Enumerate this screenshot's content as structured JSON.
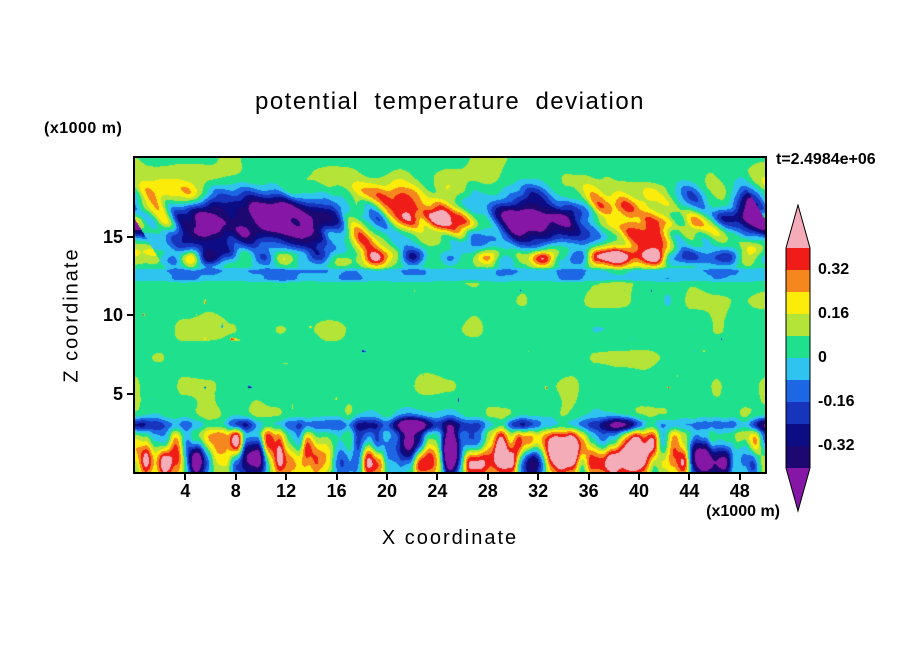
{
  "figure": {
    "background_color": "#ffffff",
    "text_color": "#000000",
    "frame_color": "#000000"
  },
  "chart_data": {
    "type": "heatmap",
    "title": "potential temperature deviation",
    "xlabel": "X coordinate",
    "ylabel": "Z coordinate",
    "x_unit_label": "(x1000 m)",
    "y_unit_label": "(x1000 m)",
    "time_annotation": "t=2.4984e+06",
    "xlim": [
      0,
      50
    ],
    "ylim": [
      0,
      20
    ],
    "x_ticks": [
      4,
      8,
      12,
      16,
      20,
      24,
      28,
      32,
      36,
      40,
      44,
      48
    ],
    "y_ticks": [
      5,
      10,
      15
    ],
    "grid": false,
    "legend": null,
    "colorbar": {
      "position": "right",
      "tick_labels": [
        "0.32",
        "0.16",
        "0",
        "-0.16",
        "-0.32"
      ],
      "levels": [
        0.4,
        0.32,
        0.24,
        0.16,
        0.08,
        0,
        -0.08,
        -0.16,
        -0.24,
        -0.32,
        -0.4
      ],
      "over_color": "#f4acb8",
      "segment_colors": [
        "#ef1c17",
        "#f6871e",
        "#fcec0a",
        "#b4e437",
        "#1fe18d",
        "#2fc4f0",
        "#1d66e4",
        "#1634bc",
        "#0c0c84",
        "#1d0770"
      ],
      "under_color": "#8616a6"
    },
    "field": {
      "note": "contour field reconstructed procedurally to approximate visible structure",
      "background": 0.05,
      "mottle": {
        "amp": 0.055,
        "nx": 26,
        "nz": 11,
        "seed": 101
      },
      "upper_band": {
        "center": 16.1,
        "width": 2.0,
        "amp": 0.95,
        "tilt": 0.015,
        "octaves": [
          {
            "nx": 9,
            "nz": 6,
            "w": 0.62,
            "seed": 7
          },
          {
            "nx": 20,
            "nz": 10,
            "w": 0.4,
            "seed": 8
          },
          {
            "nx": 44,
            "nz": 20,
            "w": 0.18,
            "seed": 9
          }
        ]
      },
      "streak_band": {
        "center": 13.7,
        "width": 0.55,
        "amp": 0.5,
        "bias": 0.25,
        "nx": 34,
        "nz": 5,
        "seed": 12
      },
      "cyan_band": {
        "z_lo": 12.0,
        "z_hi": 13.1,
        "edge": 0.3,
        "value": -0.115
      },
      "lower_band": {
        "center": 1.3,
        "width": 1.55,
        "amp": 1.15,
        "octaves": [
          {
            "nx": 30,
            "nz": 5,
            "w": 0.55,
            "seed": 31
          },
          {
            "nx": 62,
            "nz": 9,
            "w": 0.35,
            "seed": 32
          }
        ]
      },
      "cap_layer": {
        "center": 3.0,
        "width": 0.45,
        "amp": -0.5,
        "nx": 18,
        "seed": 5
      },
      "spots": {
        "z_lo": 4.0,
        "z_hi": 11.8,
        "amp": 0.45,
        "thresh": 0.95,
        "nx": 72,
        "nz": 26,
        "seed": 77
      }
    }
  }
}
